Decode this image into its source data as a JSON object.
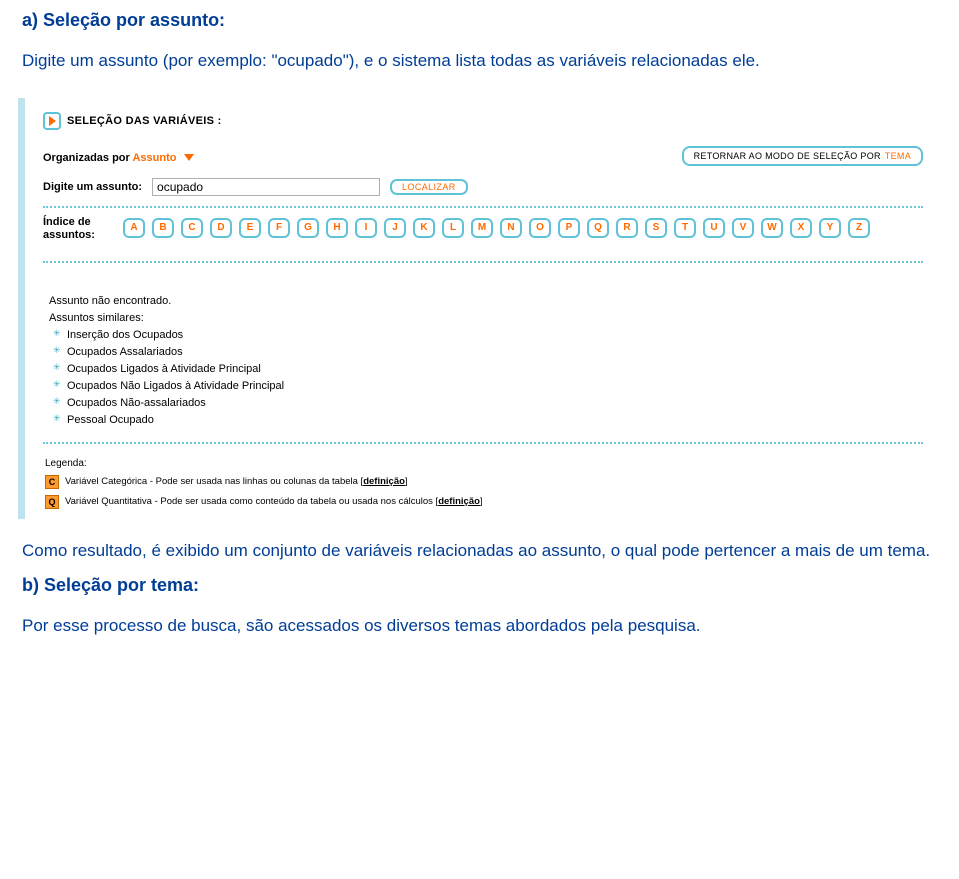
{
  "intro": {
    "heading": "a) Seleção por assunto:",
    "paragraph": "Digite um assunto (por exemplo: \"ocupado\"), e o sistema lista todas as variáveis relacionadas ele."
  },
  "app": {
    "section_title": "SELEÇÃO DAS VARIÁVEIS :",
    "organized_label_prefix": "Organizadas por ",
    "organized_word": "Assunto",
    "return_btn_prefix": "RETORNAR AO MODO DE SELEÇÃO POR ",
    "return_btn_word": "TEMA",
    "assunto_label": "Digite um assunto:",
    "assunto_value": "ocupado",
    "localizar_label": "LOCALIZAR",
    "index_label": "Índice de assuntos:",
    "letters": [
      "A",
      "B",
      "C",
      "D",
      "E",
      "F",
      "G",
      "H",
      "I",
      "J",
      "K",
      "L",
      "M",
      "N",
      "O",
      "P",
      "Q",
      "R",
      "S",
      "T",
      "U",
      "V",
      "W",
      "X",
      "Y",
      "Z"
    ],
    "results": {
      "not_found": "Assunto não encontrado.",
      "similar_label": "Assuntos similares:",
      "items": [
        "Inserção dos Ocupados",
        "Ocupados Assalariados",
        "Ocupados Ligados à Atividade Principal",
        "Ocupados Não Ligados à Atividade Principal",
        "Ocupados Não-assalariados",
        "Pessoal Ocupado"
      ]
    },
    "legend_label": "Legenda:",
    "legend": [
      {
        "icon": "C",
        "text": "Variável Categórica - Pode ser usada nas linhas ou colunas da tabela [",
        "link": "definição",
        "suffix": "]"
      },
      {
        "icon": "Q",
        "text": "Variável Quantitativa - Pode ser usada como conteúdo da tabela ou usada nos cálculos [",
        "link": "definição",
        "suffix": "]"
      }
    ]
  },
  "outro": {
    "paragraph": "Como resultado, é exibido um conjunto de variáveis relacionadas ao assunto, o qual pode pertencer a mais de um tema.",
    "heading": "b) Seleção por tema:",
    "paragraph2": "Por esse processo de busca, são acessados os diversos temas abordados pela pesquisa."
  }
}
